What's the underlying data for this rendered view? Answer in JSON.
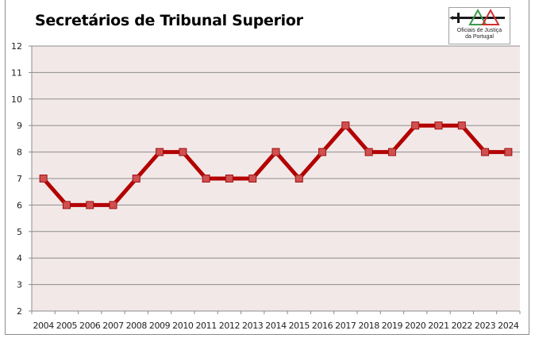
{
  "title": "Secretários de Tribunal Superior",
  "logo": {
    "line1": "Oficiais de Justiça",
    "line2": "da Portugal",
    "colors": {
      "sword": "#1a1a1a",
      "green_triangle": "#3a9a4a",
      "red_triangle": "#d03030"
    }
  },
  "colors": {
    "plot_background": "#f3e8e8",
    "gridline": "#8c8c8c",
    "line": "#b30000",
    "marker_fill": "#d05050",
    "marker_stroke": "#a01010"
  },
  "chart_data": {
    "type": "line",
    "title": "Secretários de Tribunal Superior",
    "xlabel": "",
    "ylabel": "",
    "categories": [
      "2004",
      "2005",
      "2006",
      "2007",
      "2008",
      "2009",
      "2010",
      "2011",
      "2012",
      "2013",
      "2014",
      "2015",
      "2016",
      "2017",
      "2018",
      "2019",
      "2020",
      "2021",
      "2022",
      "2023",
      "2024"
    ],
    "series": [
      {
        "name": "Secretários de Tribunal Superior",
        "values": [
          7,
          6,
          6,
          6,
          7,
          8,
          8,
          7,
          7,
          7,
          8,
          7,
          8,
          9,
          8,
          8,
          9,
          9,
          9,
          8,
          8
        ]
      }
    ],
    "ylim": [
      2,
      12
    ],
    "yticks": [
      2,
      3,
      4,
      5,
      6,
      7,
      8,
      9,
      10,
      11,
      12
    ],
    "grid": true,
    "legend": "none"
  }
}
